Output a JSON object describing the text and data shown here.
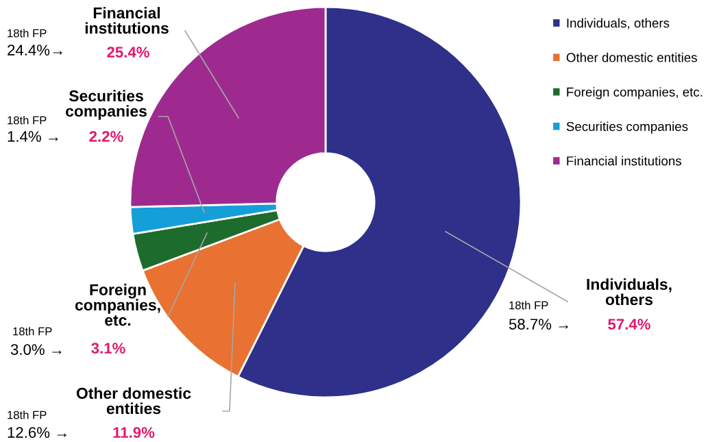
{
  "chart_data": {
    "type": "donut",
    "categories": [
      "Individuals, others",
      "Other domestic entities",
      "Foreign companies, etc.",
      "Securities companies",
      "Financial institutions"
    ],
    "values": [
      57.4,
      11.9,
      3.1,
      2.2,
      25.4
    ],
    "colors": [
      "#2e3089",
      "#e97132",
      "#1e6b2e",
      "#149fd8",
      "#9e2a8f"
    ],
    "value_labels": [
      "57.4%",
      "11.9%",
      "3.1%",
      "2.2%",
      "25.4%"
    ],
    "annotations": [
      "18th FP",
      "58.7% →",
      "18th FP",
      "12.6% →",
      "18th FP",
      "3.0% →",
      "18th FP",
      "1.4% →",
      "18th FP",
      "24.4%→"
    ],
    "legend": "right"
  }
}
